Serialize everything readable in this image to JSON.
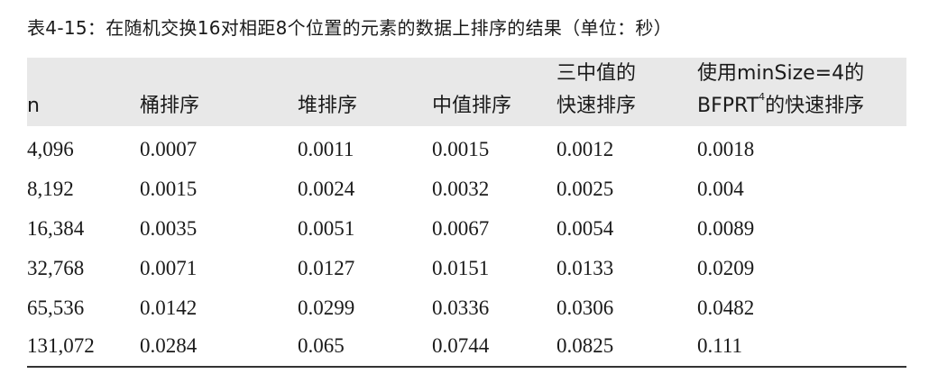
{
  "caption": "表4-15：在随机交换16对相距8个位置的元素的数据上排序的结果（单位：秒）",
  "table": {
    "headers": {
      "n": "n",
      "bucket": "桶排序",
      "heap": "堆排序",
      "median": "中值排序",
      "quick3_line1": "三中值的",
      "quick3_line2": "快速排序",
      "bfprt_line1": "使用minSize=4的",
      "bfprt_line2_pre": "BFPRT",
      "bfprt_sup": "4",
      "bfprt_line2_post": "的快速排序"
    },
    "rows": [
      [
        "4,096",
        "0.0007",
        "0.0011",
        "0.0015",
        "0.0012",
        "0.0018"
      ],
      [
        "8,192",
        "0.0015",
        "0.0024",
        "0.0032",
        "0.0025",
        "0.004"
      ],
      [
        "16,384",
        "0.0035",
        "0.0051",
        "0.0067",
        "0.0054",
        "0.0089"
      ],
      [
        "32,768",
        "0.0071",
        "0.0127",
        "0.0151",
        "0.0133",
        "0.0209"
      ],
      [
        "65,536",
        "0.0142",
        "0.0299",
        "0.0336",
        "0.0306",
        "0.0482"
      ],
      [
        "131,072",
        "0.0284",
        "0.065",
        "0.0744",
        "0.0825",
        "0.111"
      ]
    ]
  }
}
